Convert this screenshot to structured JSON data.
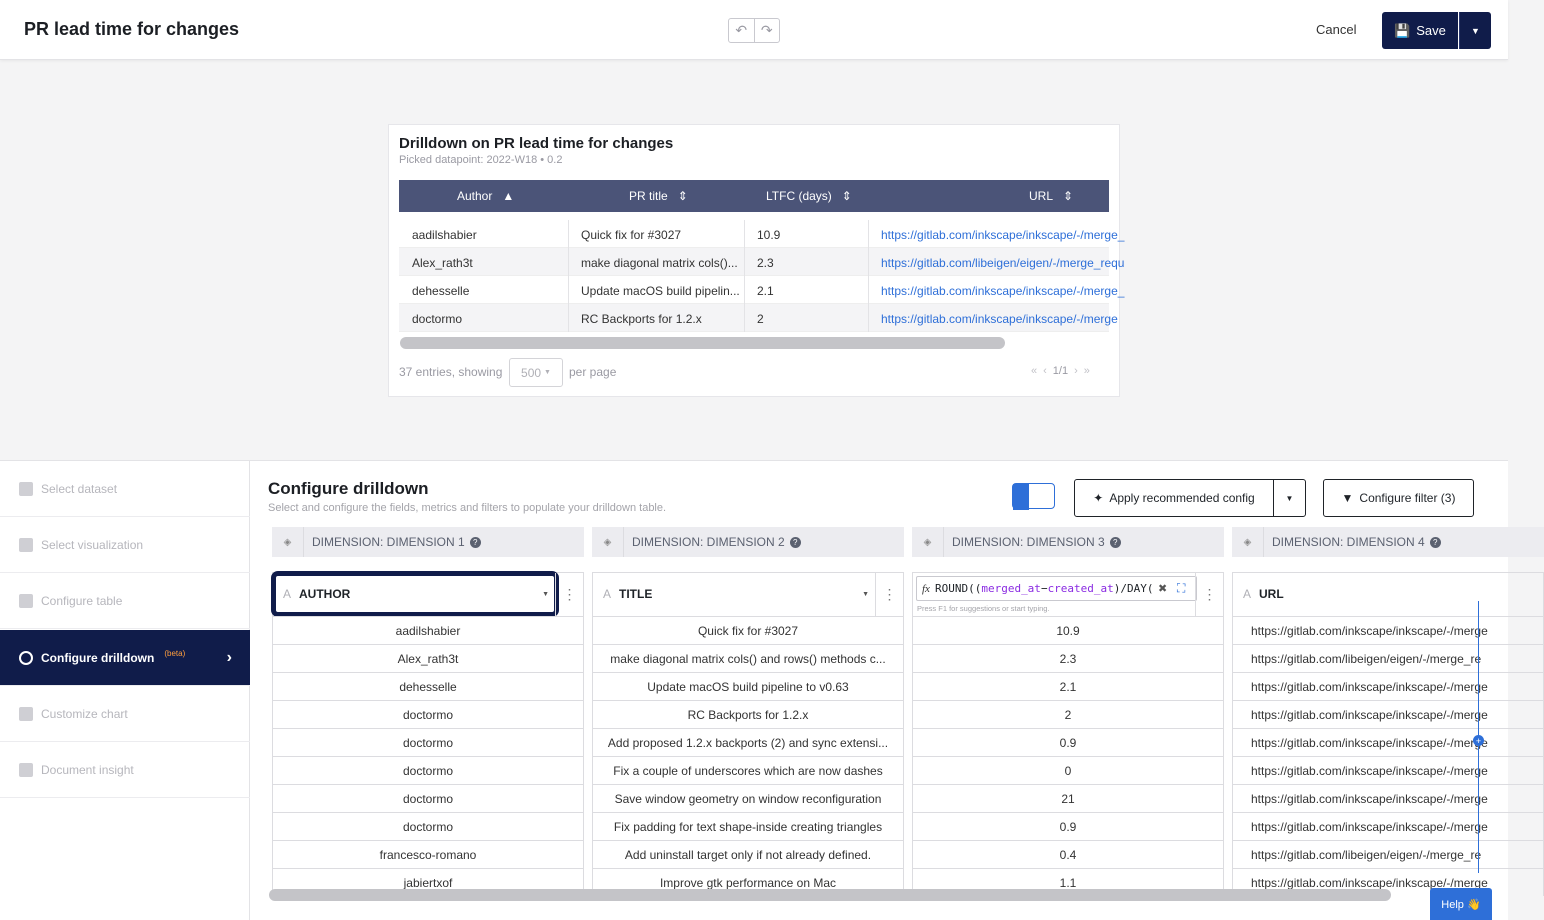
{
  "header": {
    "title": "PR lead time for changes",
    "cancel_label": "Cancel",
    "save_label": "Save"
  },
  "preview": {
    "title": "Drilldown on PR lead time for changes",
    "subtitle": "Picked datapoint:  2022-W18 • 0.2",
    "columns": [
      "Author",
      "PR title",
      "LTFC (days)",
      "URL"
    ],
    "rows": [
      [
        "aadilshabier",
        "Quick fix for #3027",
        "10.9",
        "https://gitlab.com/inkscape/inkscape/-/merge_"
      ],
      [
        "Alex_rath3t",
        "make diagonal matrix cols()...",
        "2.3",
        "https://gitlab.com/libeigen/eigen/-/merge_requ"
      ],
      [
        "dehesselle",
        "Update macOS build pipelin...",
        "2.1",
        "https://gitlab.com/inkscape/inkscape/-/merge_"
      ],
      [
        "doctormo",
        "RC Backports for 1.2.x",
        "2",
        "https://gitlab.com/inkscape/inkscape/-/merge"
      ]
    ],
    "entries_text": "37 entries, showing",
    "page_size": "500",
    "per_page_text": "per page",
    "page_indicator": "1/1"
  },
  "nav": {
    "items": [
      {
        "label": "Select dataset"
      },
      {
        "label": "Select visualization"
      },
      {
        "label": "Configure table"
      },
      {
        "label": "Configure drilldown",
        "badge": "(beta)"
      },
      {
        "label": "Customize chart"
      },
      {
        "label": "Document insight"
      }
    ]
  },
  "config": {
    "title": "Configure drilldown",
    "subtitle": "Select and configure the fields, metrics and filters to populate your drilldown table.",
    "recommend_label": "Apply recommended config",
    "filter_label": "Configure filter (3)",
    "formula_hint": "Press F1 for suggestions or start typing.",
    "formula": {
      "fn": "ROUND",
      "p1": "((",
      "a": "merged_at",
      "op": "−",
      "b": "created_at",
      "p2": ")/",
      "fn2": "DAY",
      "p3": "("
    },
    "columns": [
      {
        "dimension": "DIMENSION: DIMENSION 1",
        "field": "AUTHOR"
      },
      {
        "dimension": "DIMENSION: DIMENSION 2",
        "field": "TITLE"
      },
      {
        "dimension": "DIMENSION: DIMENSION 3",
        "field": ""
      },
      {
        "dimension": "DIMENSION: DIMENSION 4",
        "field": "URL"
      }
    ],
    "rows": [
      [
        "aadilshabier",
        "Quick fix for #3027",
        "10.9",
        "https://gitlab.com/inkscape/inkscape/-/merge"
      ],
      [
        "Alex_rath3t",
        "make diagonal matrix cols() and rows() methods c...",
        "2.3",
        "https://gitlab.com/libeigen/eigen/-/merge_re"
      ],
      [
        "dehesselle",
        "Update macOS build pipeline to v0.63",
        "2.1",
        "https://gitlab.com/inkscape/inkscape/-/merge"
      ],
      [
        "doctormo",
        "RC Backports for 1.2.x",
        "2",
        "https://gitlab.com/inkscape/inkscape/-/merge"
      ],
      [
        "doctormo",
        "Add proposed 1.2.x backports (2) and sync extensi...",
        "0.9",
        "https://gitlab.com/inkscape/inkscape/-/merge"
      ],
      [
        "doctormo",
        "Fix a couple of underscores which are now dashes",
        "0",
        "https://gitlab.com/inkscape/inkscape/-/merge"
      ],
      [
        "doctormo",
        "Save window geometry on window reconfiguration",
        "21",
        "https://gitlab.com/inkscape/inkscape/-/merge"
      ],
      [
        "doctormo",
        "Fix padding for text shape-inside creating triangles",
        "0.9",
        "https://gitlab.com/inkscape/inkscape/-/merge"
      ],
      [
        "francesco-romano",
        "Add uninstall target only if not already defined.",
        "0.4",
        "https://gitlab.com/libeigen/eigen/-/merge_re"
      ],
      [
        "jabiertxof",
        "Improve gtk performance on Mac",
        "1.1",
        "https://gitlab.com/inkscape/inkscape/-/merge"
      ]
    ]
  },
  "help_label": "Help 👋"
}
